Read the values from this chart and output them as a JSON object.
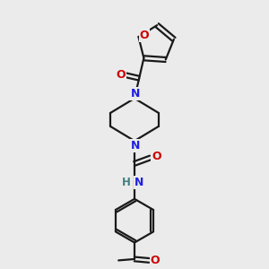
{
  "bg_color": "#ebebeb",
  "bond_color": "#1a1a1a",
  "bond_width": 1.6,
  "N_color": "#2020dd",
  "O_color": "#cc0000",
  "H_color": "#408080",
  "font_size": 9,
  "fig_size": [
    3.0,
    3.0
  ],
  "dpi": 100,
  "xlim": [
    0,
    10
  ],
  "ylim": [
    0,
    10
  ]
}
